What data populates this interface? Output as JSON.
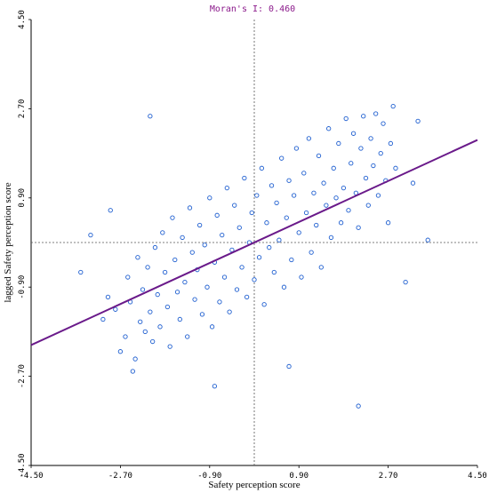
{
  "chart_data": {
    "type": "scatter",
    "title": "Moran's I: 0.460",
    "xlabel": "Safety perception score",
    "ylabel": "lagged Safety perception score",
    "xlim": [
      -4.5,
      4.5
    ],
    "ylim": [
      -4.5,
      4.5
    ],
    "x_ticks": [
      "-4.50",
      "-2.70",
      "-0.90",
      "0.90",
      "2.70",
      "4.50"
    ],
    "y_ticks": [
      "-4.50",
      "-2.70",
      "-0.90",
      "0.90",
      "2.70",
      "4.50"
    ],
    "grid": false,
    "reference_lines": {
      "x": 0,
      "y": 0
    },
    "point_color": "#1f5fd0",
    "regression_color": "#6a1a8a",
    "title_color": "#8b1a8b",
    "regression_line": {
      "slope": 0.46,
      "intercept": 0.0
    },
    "series": [
      {
        "points": [
          [
            -3.05,
            -1.55
          ],
          [
            -2.95,
            -1.1
          ],
          [
            -2.8,
            -1.35
          ],
          [
            -2.7,
            -2.2
          ],
          [
            -2.6,
            -1.9
          ],
          [
            -2.55,
            -0.7
          ],
          [
            -2.5,
            -1.2
          ],
          [
            -2.45,
            -2.6
          ],
          [
            -2.4,
            -2.35
          ],
          [
            -2.35,
            -0.3
          ],
          [
            -2.3,
            -1.6
          ],
          [
            -2.25,
            -0.95
          ],
          [
            -2.2,
            -1.8
          ],
          [
            -2.15,
            -0.5
          ],
          [
            -2.1,
            -1.4
          ],
          [
            -2.05,
            -2.0
          ],
          [
            -2.0,
            -0.1
          ],
          [
            -1.95,
            -1.05
          ],
          [
            -1.9,
            -1.7
          ],
          [
            -1.85,
            0.2
          ],
          [
            -1.8,
            -0.6
          ],
          [
            -1.75,
            -1.3
          ],
          [
            -1.7,
            -2.1
          ],
          [
            -1.65,
            0.5
          ],
          [
            -1.6,
            -0.35
          ],
          [
            -1.55,
            -1.0
          ],
          [
            -1.5,
            -1.55
          ],
          [
            -1.45,
            0.1
          ],
          [
            -1.4,
            -0.8
          ],
          [
            -1.35,
            -1.9
          ],
          [
            -1.3,
            0.7
          ],
          [
            -1.25,
            -0.2
          ],
          [
            -1.2,
            -1.15
          ],
          [
            -1.15,
            -0.55
          ],
          [
            -1.1,
            0.35
          ],
          [
            -1.05,
            -1.45
          ],
          [
            -1.0,
            -0.05
          ],
          [
            -0.95,
            -0.9
          ],
          [
            -0.9,
            0.9
          ],
          [
            -0.85,
            -1.7
          ],
          [
            -0.8,
            -0.4
          ],
          [
            -0.75,
            0.55
          ],
          [
            -0.7,
            -1.2
          ],
          [
            -0.65,
            0.15
          ],
          [
            -0.6,
            -0.7
          ],
          [
            -0.55,
            1.1
          ],
          [
            -0.5,
            -1.4
          ],
          [
            -0.45,
            -0.15
          ],
          [
            -0.4,
            0.75
          ],
          [
            -0.35,
            -0.95
          ],
          [
            -0.3,
            0.3
          ],
          [
            -0.25,
            -0.5
          ],
          [
            -0.2,
            1.3
          ],
          [
            -0.15,
            -1.1
          ],
          [
            -0.1,
            0.0
          ],
          [
            -0.05,
            0.6
          ],
          [
            0.0,
            -0.75
          ],
          [
            0.05,
            0.95
          ],
          [
            0.1,
            -0.3
          ],
          [
            0.15,
            1.5
          ],
          [
            0.2,
            -1.25
          ],
          [
            0.25,
            0.4
          ],
          [
            0.3,
            -0.1
          ],
          [
            0.35,
            1.15
          ],
          [
            0.4,
            -0.6
          ],
          [
            0.45,
            0.8
          ],
          [
            0.5,
            0.05
          ],
          [
            0.55,
            1.7
          ],
          [
            0.6,
            -0.9
          ],
          [
            0.65,
            0.5
          ],
          [
            0.7,
            1.25
          ],
          [
            0.75,
            -0.35
          ],
          [
            0.8,
            0.95
          ],
          [
            0.85,
            1.9
          ],
          [
            0.9,
            0.2
          ],
          [
            0.95,
            -0.7
          ],
          [
            1.0,
            1.4
          ],
          [
            1.05,
            0.6
          ],
          [
            1.1,
            2.1
          ],
          [
            1.15,
            -0.2
          ],
          [
            1.2,
            1.0
          ],
          [
            1.25,
            0.35
          ],
          [
            1.3,
            1.75
          ],
          [
            1.35,
            -0.5
          ],
          [
            1.4,
            1.2
          ],
          [
            1.45,
            0.75
          ],
          [
            1.5,
            2.3
          ],
          [
            1.55,
            0.1
          ],
          [
            1.6,
            1.5
          ],
          [
            1.65,
            0.9
          ],
          [
            1.7,
            2.0
          ],
          [
            1.75,
            0.4
          ],
          [
            1.8,
            1.1
          ],
          [
            1.85,
            2.5
          ],
          [
            1.9,
            0.65
          ],
          [
            1.95,
            1.6
          ],
          [
            2.0,
            2.2
          ],
          [
            2.05,
            1.0
          ],
          [
            2.1,
            0.3
          ],
          [
            2.15,
            1.9
          ],
          [
            2.2,
            2.55
          ],
          [
            2.25,
            1.3
          ],
          [
            2.3,
            0.75
          ],
          [
            2.35,
            2.1
          ],
          [
            2.4,
            1.55
          ],
          [
            2.45,
            2.6
          ],
          [
            2.5,
            0.95
          ],
          [
            2.55,
            1.8
          ],
          [
            2.6,
            2.4
          ],
          [
            2.65,
            1.25
          ],
          [
            2.7,
            0.4
          ],
          [
            2.75,
            2.0
          ],
          [
            2.8,
            2.75
          ],
          [
            2.85,
            1.5
          ],
          [
            3.05,
            -0.8
          ],
          [
            3.2,
            1.2
          ],
          [
            3.3,
            2.45
          ],
          [
            -2.1,
            2.55
          ],
          [
            -0.8,
            -2.9
          ],
          [
            0.7,
            -2.5
          ],
          [
            2.1,
            -3.3
          ],
          [
            -3.5,
            -0.6
          ],
          [
            -3.3,
            0.15
          ],
          [
            -2.9,
            0.65
          ],
          [
            3.5,
            0.05
          ]
        ]
      }
    ]
  }
}
